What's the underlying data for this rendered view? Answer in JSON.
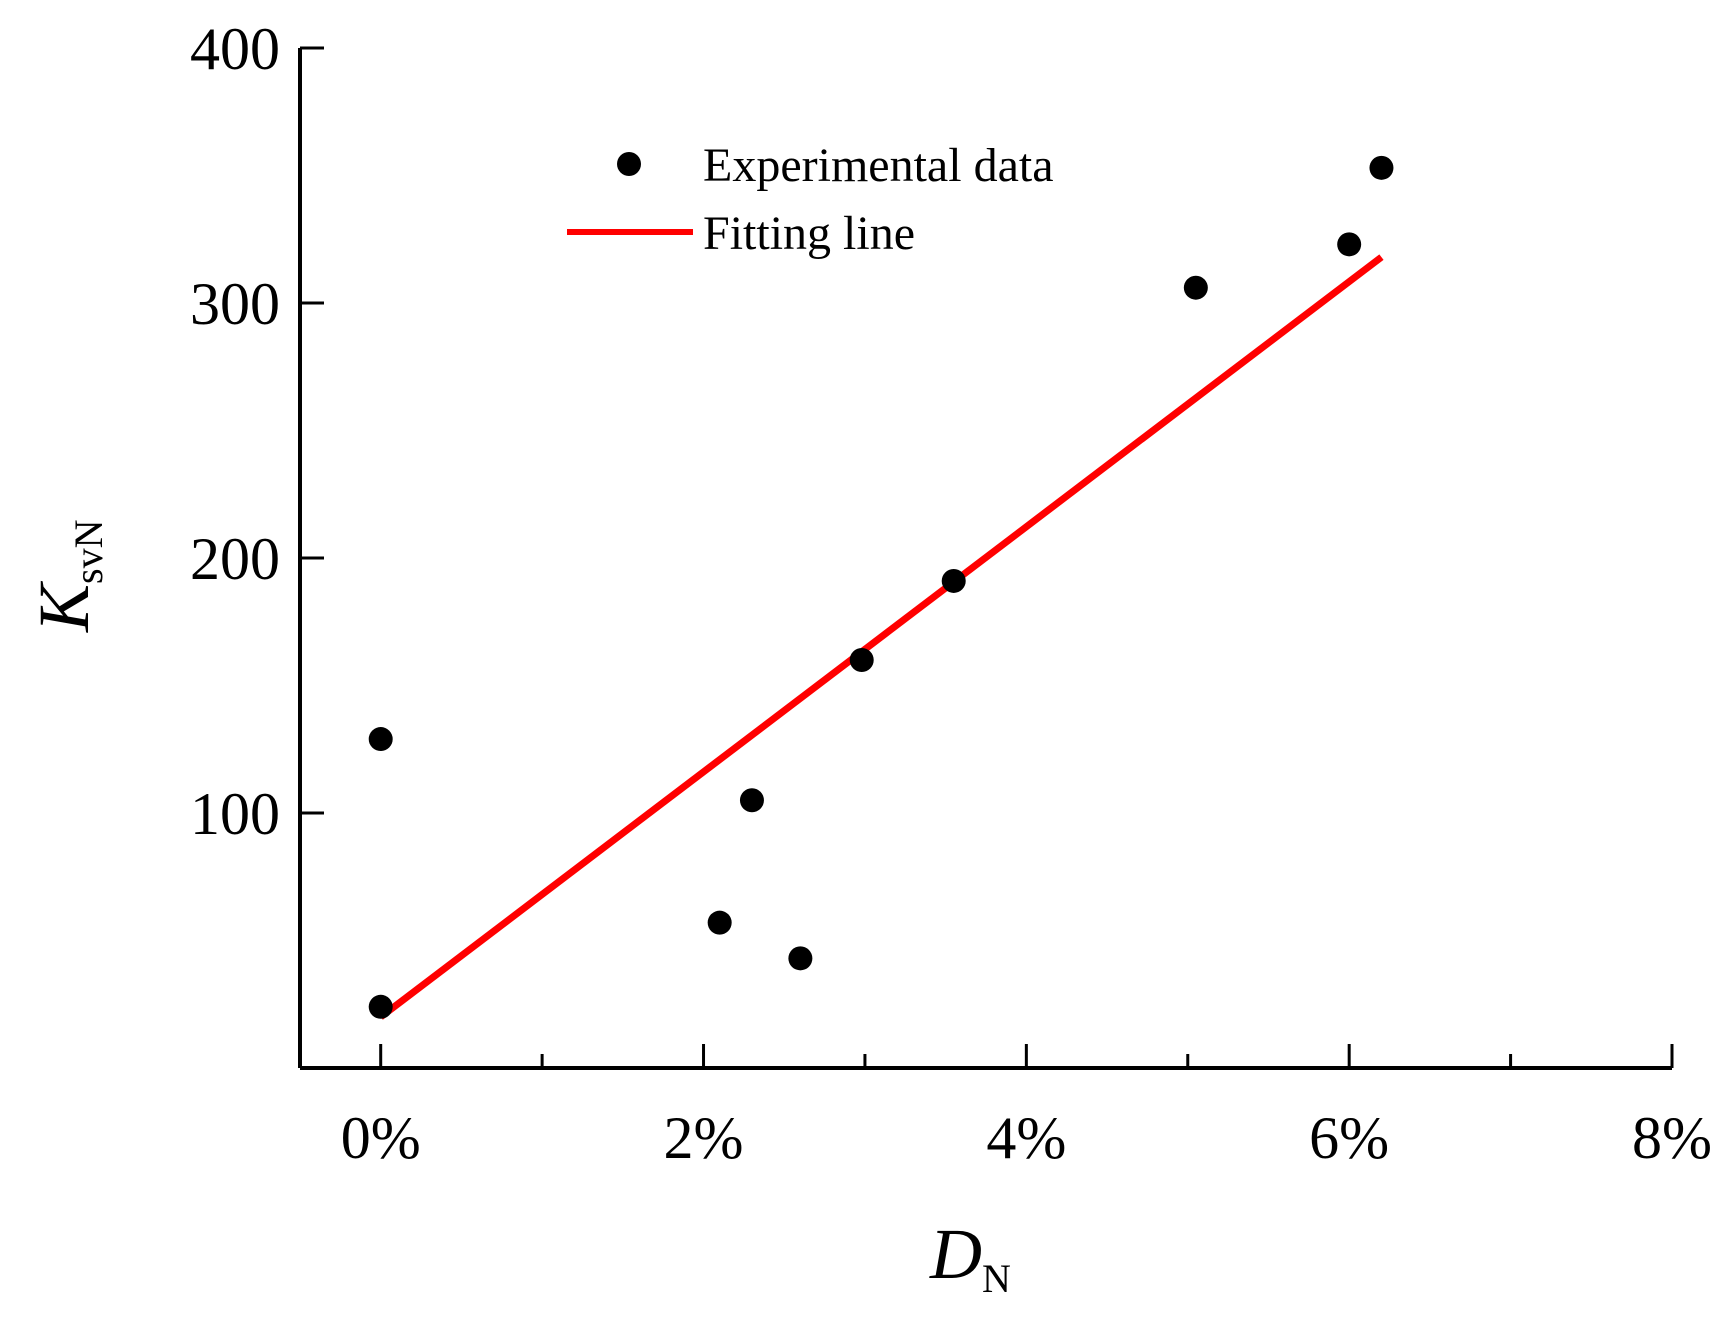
{
  "chart_data": {
    "type": "scatter",
    "xlabel": "D",
    "xlabel_subscript": "N",
    "ylabel": "K",
    "ylabel_subscript": "svN",
    "xlim": [
      -0.5,
      8
    ],
    "ylim": [
      0,
      400
    ],
    "xticks": [
      0,
      2,
      4,
      6,
      8
    ],
    "xtick_labels": [
      "0%",
      "2%",
      "4%",
      "6%",
      "8%"
    ],
    "xminor_ticks": [
      1,
      3,
      5,
      7
    ],
    "yticks": [
      100,
      200,
      300,
      400
    ],
    "ytick_labels": [
      "100",
      "200",
      "300",
      "400"
    ],
    "series": [
      {
        "name": "Experimental data",
        "kind": "scatter",
        "color": "#000000",
        "points": [
          {
            "x": 0.0,
            "y": 129
          },
          {
            "x": 0.0,
            "y": 24
          },
          {
            "x": 2.1,
            "y": 57
          },
          {
            "x": 2.3,
            "y": 105
          },
          {
            "x": 2.6,
            "y": 43
          },
          {
            "x": 2.98,
            "y": 160
          },
          {
            "x": 3.55,
            "y": 191
          },
          {
            "x": 5.05,
            "y": 306
          },
          {
            "x": 6.0,
            "y": 323
          },
          {
            "x": 6.2,
            "y": 353
          }
        ]
      },
      {
        "name": "Fitting line",
        "kind": "line",
        "color": "#ff0000",
        "points": [
          {
            "x": 0.0,
            "y": 20
          },
          {
            "x": 6.2,
            "y": 318
          }
        ]
      }
    ],
    "legend_position": "top-center"
  }
}
